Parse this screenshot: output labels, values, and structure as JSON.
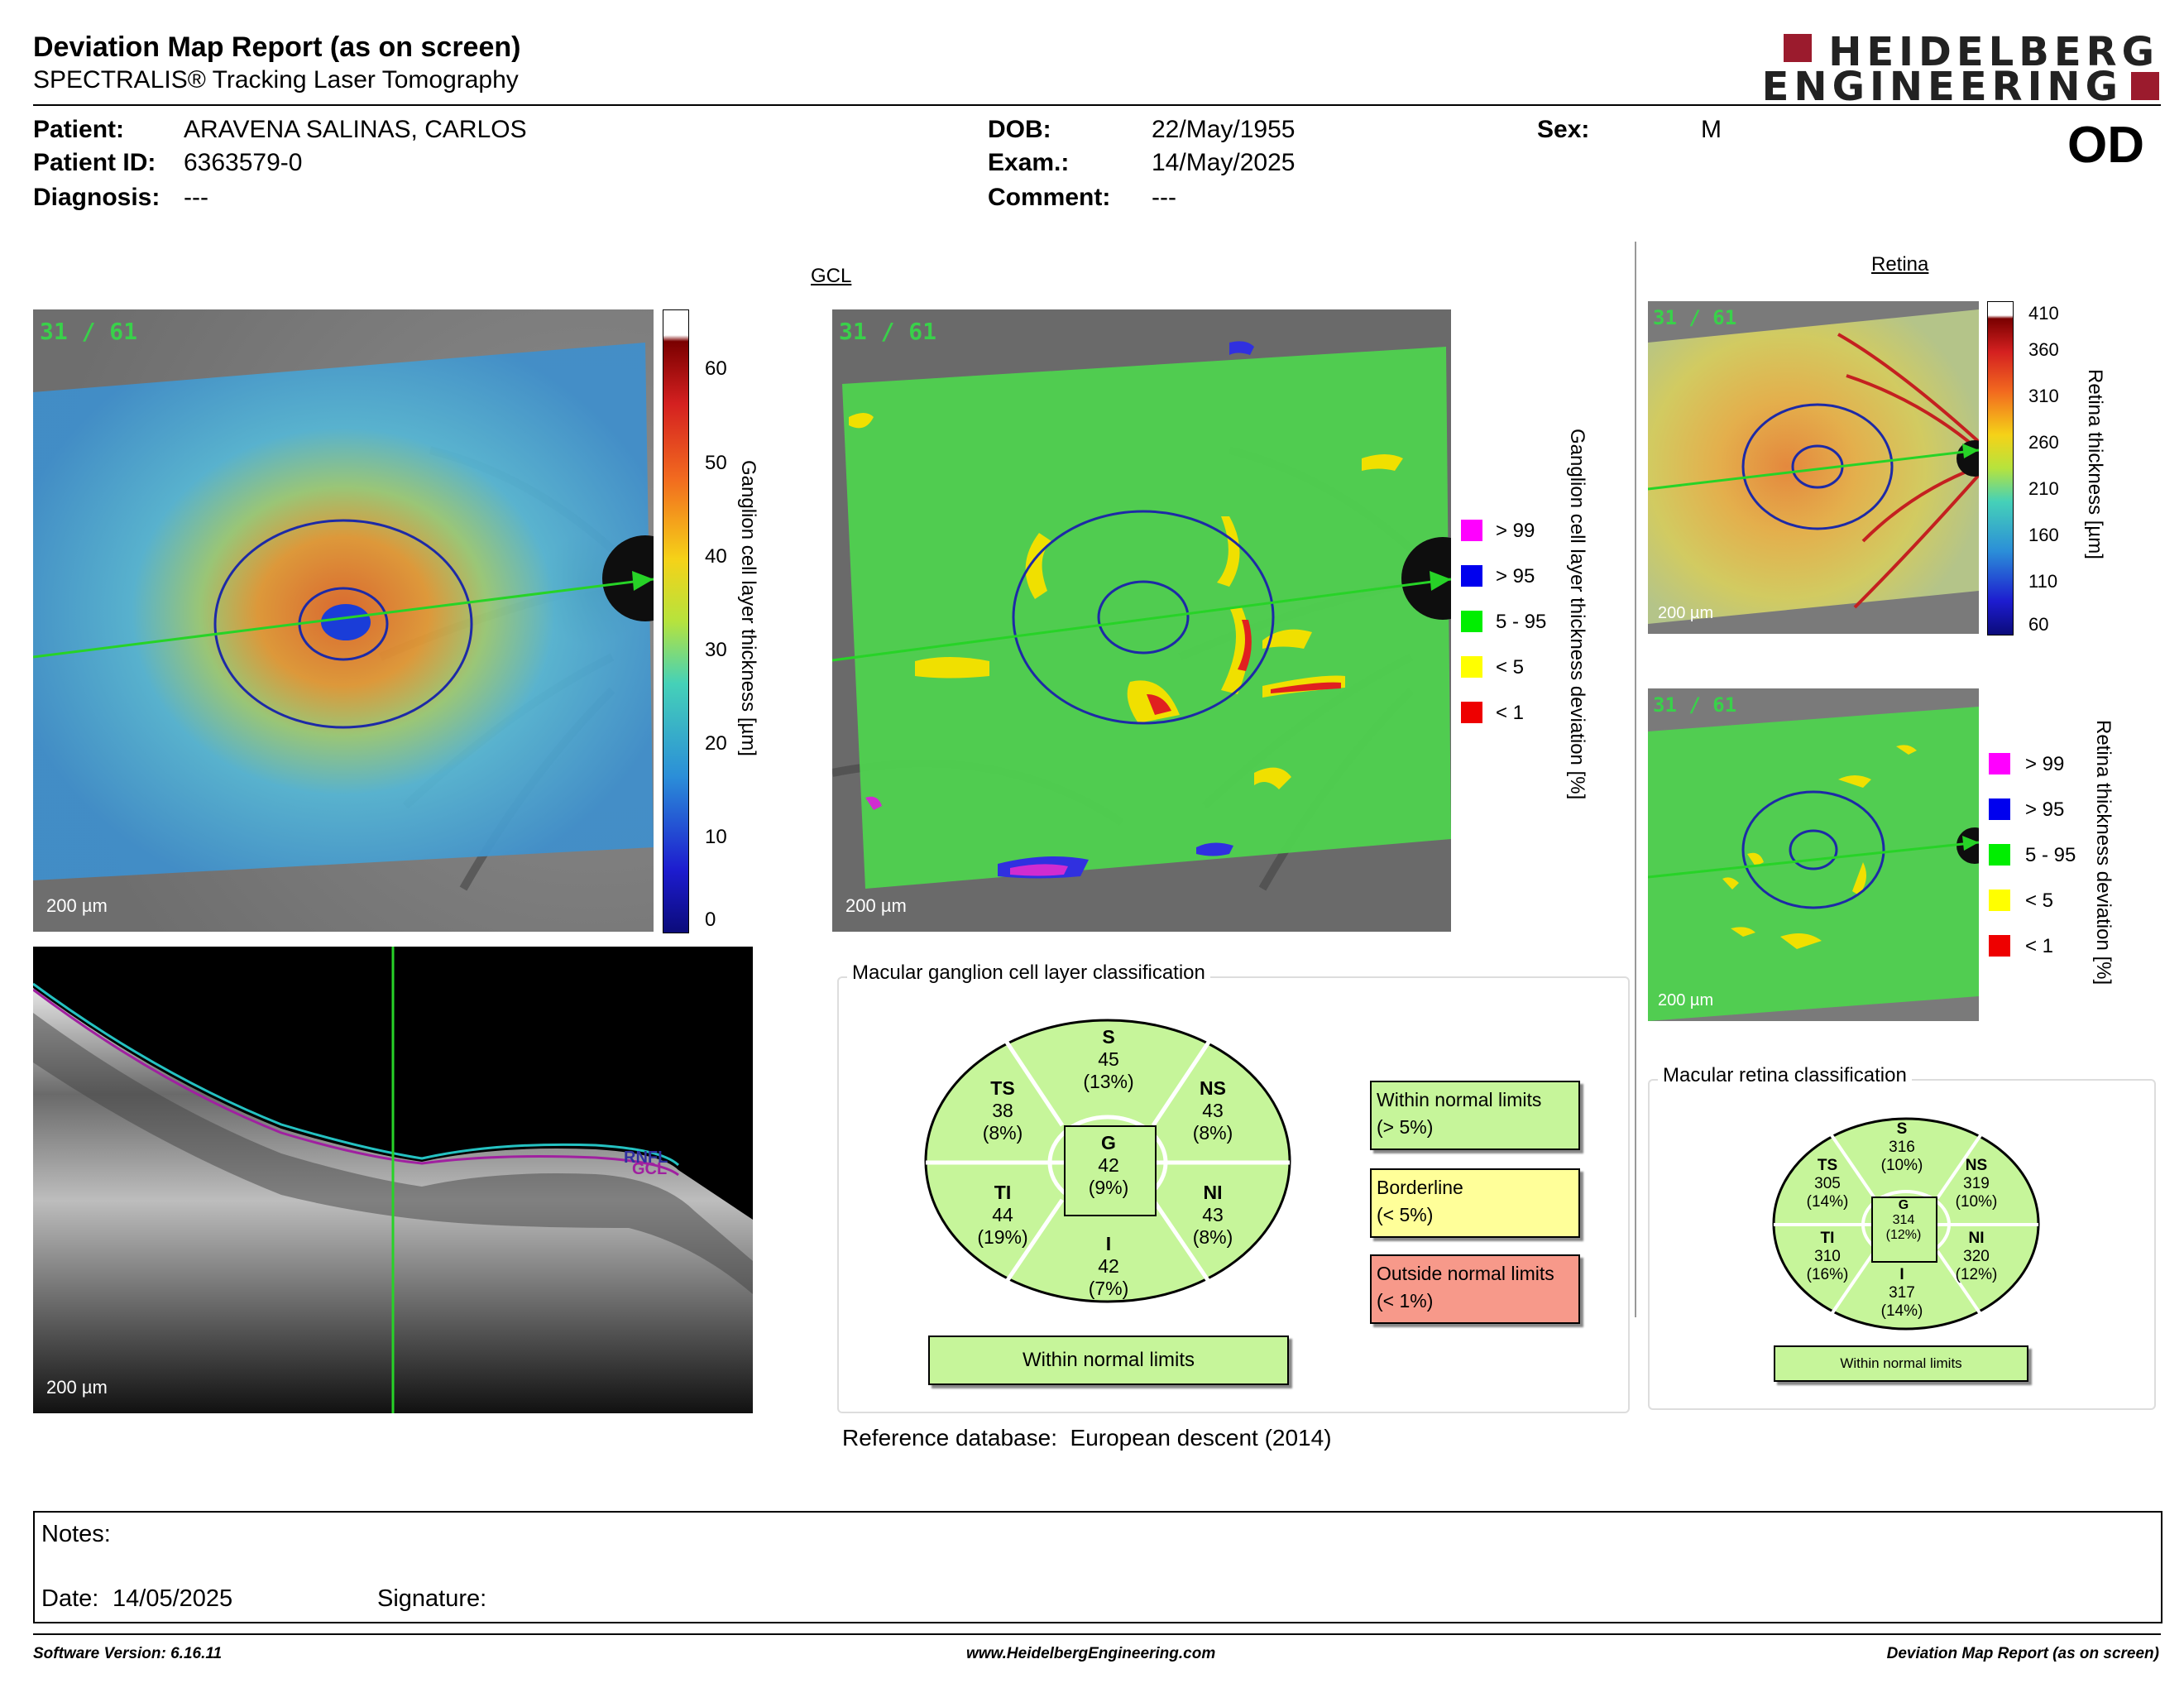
{
  "header": {
    "title": "Deviation Map Report (as on screen)",
    "subtitle": "SPECTRALIS® Tracking Laser Tomography",
    "logo_line1": "HEIDELBERG",
    "logo_line2": "ENGINEERING"
  },
  "patient": {
    "patient_label": "Patient:",
    "patient_value": "ARAVENA SALINAS, CARLOS",
    "id_label": "Patient ID:",
    "id_value": "6363579-0",
    "diagnosis_label": "Diagnosis:",
    "diagnosis_value": "---",
    "dob_label": "DOB:",
    "dob_value": "22/May/1955",
    "exam_label": "Exam.:",
    "exam_value": "14/May/2025",
    "comment_label": "Comment:",
    "comment_value": "---",
    "sex_label": "Sex:",
    "sex_value": "M",
    "eye": "OD"
  },
  "gcl": {
    "section_label": "GCL",
    "scan_tag": "31 / 61",
    "scale_label": "200 µm",
    "thickness_axis_label": "Ganglion cell layer thickness [µm]",
    "thickness_ticks": [
      "60",
      "50",
      "40",
      "30",
      "20",
      "10",
      "0"
    ],
    "deviation_axis_label": "Ganglion cell layer thickness deviation [%]",
    "deviation_legend": [
      {
        "label": "> 99",
        "color": "#ff00ff"
      },
      {
        "label": "> 95",
        "color": "#0000ee"
      },
      {
        "label": "5 - 95",
        "color": "#00ee00"
      },
      {
        "label": "< 5",
        "color": "#ffff00"
      },
      {
        "label": "< 1",
        "color": "#ee0000"
      }
    ]
  },
  "bscan": {
    "scale_label": "200 µm",
    "layer_label_1": "RNFL",
    "layer_label_2": "GCL"
  },
  "gcl_classification": {
    "box_title": "Macular ganglion cell layer classification",
    "sectors": {
      "S": {
        "name": "S",
        "value": "45",
        "pct": "(13%)"
      },
      "TS": {
        "name": "TS",
        "value": "38",
        "pct": "(8%)"
      },
      "NS": {
        "name": "NS",
        "value": "43",
        "pct": "(8%)"
      },
      "TI": {
        "name": "TI",
        "value": "44",
        "pct": "(19%)"
      },
      "NI": {
        "name": "NI",
        "value": "43",
        "pct": "(8%)"
      },
      "I": {
        "name": "I",
        "value": "42",
        "pct": "(7%)"
      },
      "G": {
        "name": "G",
        "value": "42",
        "pct": "(9%)"
      }
    },
    "result": "Within normal limits",
    "key": [
      {
        "line1": "Within normal limits",
        "line2": "(> 5%)",
        "color": "#c6f59a"
      },
      {
        "line1": "Borderline",
        "line2": "(< 5%)",
        "color": "#ffff99"
      },
      {
        "line1": "Outside normal limits",
        "line2": "(< 1%)",
        "color": "#f7998a"
      }
    ],
    "sector_color": "#c6f59a"
  },
  "reference": {
    "label": "Reference database",
    "sep": ":",
    "value": "European descent (2014)"
  },
  "retina": {
    "section_label": "Retina",
    "scan_tag": "31 / 61",
    "scale_label": "200 µm",
    "thickness_axis_label": "Retina thickness [µm]",
    "thickness_ticks": [
      "410",
      "360",
      "310",
      "260",
      "210",
      "160",
      "110",
      "60"
    ],
    "deviation_axis_label": "Retina thickness deviation [%]"
  },
  "retina_classification": {
    "box_title": "Macular retina classification",
    "sectors": {
      "S": {
        "name": "S",
        "value": "316",
        "pct": "(10%)"
      },
      "TS": {
        "name": "TS",
        "value": "305",
        "pct": "(14%)"
      },
      "NS": {
        "name": "NS",
        "value": "319",
        "pct": "(10%)"
      },
      "TI": {
        "name": "TI",
        "value": "310",
        "pct": "(16%)"
      },
      "NI": {
        "name": "NI",
        "value": "320",
        "pct": "(12%)"
      },
      "I": {
        "name": "I",
        "value": "317",
        "pct": "(14%)"
      },
      "G": {
        "name": "G",
        "value": "314",
        "pct": "(12%)"
      }
    },
    "result": "Within normal limits"
  },
  "notes": {
    "notes_label": "Notes:",
    "date_label": "Date:",
    "date_value": "14/05/2025",
    "signature_label": "Signature:"
  },
  "footer": {
    "software": "Software Version: 6.16.11",
    "website": "www.HeidelbergEngineering.com",
    "report": "Deviation Map Report (as on screen)"
  }
}
